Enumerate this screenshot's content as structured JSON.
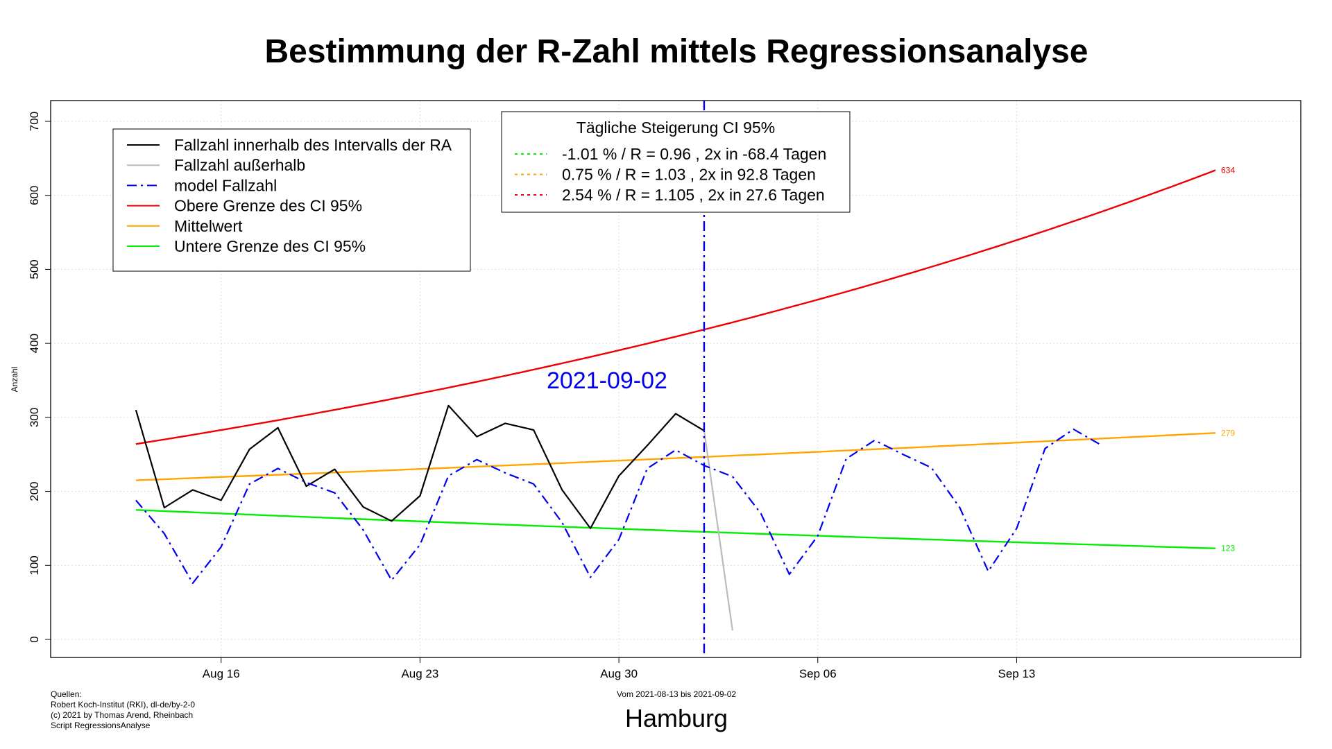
{
  "chart_data": {
    "type": "line",
    "title": "Bestimmung der R-Zahl mittels Regressionsanalyse",
    "ylabel": "Anzahl",
    "subtitle": "Hamburg",
    "range_note": "Vom 2021-08-13 bis 2021-09-02",
    "sources": [
      "Quellen:",
      "Robert Koch-Institut (RKI), dl-de/by-2-0",
      "(c) 2021 by Thomas Arend, Rheinbach",
      "Script RegressionsAnalyse"
    ],
    "ylim": [
      0,
      700
    ],
    "yticks": [
      0,
      100,
      200,
      300,
      400,
      500,
      600,
      700
    ],
    "xlim": [
      "2021-08-10",
      "2021-09-23"
    ],
    "xticks": [
      {
        "date": "2021-08-16",
        "label": "Aug 16"
      },
      {
        "date": "2021-08-23",
        "label": "Aug 23"
      },
      {
        "date": "2021-08-30",
        "label": "Aug 30"
      },
      {
        "date": "2021-09-06",
        "label": "Sep 06"
      },
      {
        "date": "2021-09-13",
        "label": "Sep 13"
      }
    ],
    "grid": true,
    "reference_line": {
      "date": "2021-09-02",
      "label": "2021-09-02",
      "color": "#0000ee"
    },
    "series": [
      {
        "name": "Fallzahl innerhalb des Intervalls der RA",
        "color": "#000000",
        "style": "solid",
        "x": [
          "2021-08-13",
          "2021-08-14",
          "2021-08-15",
          "2021-08-16",
          "2021-08-17",
          "2021-08-18",
          "2021-08-19",
          "2021-08-20",
          "2021-08-21",
          "2021-08-22",
          "2021-08-23",
          "2021-08-24",
          "2021-08-25",
          "2021-08-26",
          "2021-08-27",
          "2021-08-28",
          "2021-08-29",
          "2021-08-30",
          "2021-08-31",
          "2021-09-01",
          "2021-09-02"
        ],
        "y": [
          310,
          178,
          202,
          188,
          257,
          286,
          207,
          230,
          179,
          160,
          194,
          316,
          274,
          292,
          283,
          202,
          150,
          221,
          262,
          305,
          282
        ]
      },
      {
        "name": "Fallzahl außerhalb",
        "color": "#bbbbbb",
        "style": "solid",
        "x": [
          "2021-09-02",
          "2021-09-03"
        ],
        "y": [
          282,
          12
        ]
      },
      {
        "name": "model Fallzahl",
        "color": "#0000ee",
        "style": "dashdot",
        "x": [
          "2021-08-13",
          "2021-08-14",
          "2021-08-15",
          "2021-08-16",
          "2021-08-17",
          "2021-08-18",
          "2021-08-19",
          "2021-08-20",
          "2021-08-21",
          "2021-08-22",
          "2021-08-23",
          "2021-08-24",
          "2021-08-25",
          "2021-08-26",
          "2021-08-27",
          "2021-08-28",
          "2021-08-29",
          "2021-08-30",
          "2021-08-31",
          "2021-09-01",
          "2021-09-02",
          "2021-09-03",
          "2021-09-04",
          "2021-09-05",
          "2021-09-06",
          "2021-09-07",
          "2021-09-08",
          "2021-09-09",
          "2021-09-10",
          "2021-09-11",
          "2021-09-12",
          "2021-09-13",
          "2021-09-14",
          "2021-09-15",
          "2021-09-16"
        ],
        "y": [
          188,
          143,
          76,
          125,
          210,
          231,
          212,
          198,
          148,
          80,
          128,
          221,
          243,
          225,
          210,
          158,
          84,
          135,
          231,
          256,
          235,
          220,
          170,
          88,
          140,
          244,
          269,
          250,
          232,
          178,
          92,
          150,
          258,
          284,
          262
        ]
      },
      {
        "name": "Obere Grenze des CI 95%",
        "color": "#ee0000",
        "style": "solid",
        "kind": "exponential",
        "start": {
          "date": "2021-08-13",
          "value": 264
        },
        "end": {
          "date": "2021-09-20",
          "value": 634
        },
        "end_label": "634"
      },
      {
        "name": "Mittelwert",
        "color": "#ffa500",
        "style": "solid",
        "kind": "exponential",
        "start": {
          "date": "2021-08-13",
          "value": 215
        },
        "end": {
          "date": "2021-09-20",
          "value": 279
        },
        "end_label": "279"
      },
      {
        "name": "Untere Grenze des CI 95%",
        "color": "#00ee00",
        "style": "solid",
        "kind": "exponential",
        "start": {
          "date": "2021-08-13",
          "value": 175
        },
        "end": {
          "date": "2021-09-20",
          "value": 123
        },
        "end_label": "123"
      }
    ],
    "legend": {
      "position": "top-left",
      "items": [
        {
          "label": "Fallzahl innerhalb des Intervalls der RA",
          "color": "#000000",
          "style": "solid"
        },
        {
          "label": "Fallzahl außerhalb",
          "color": "#bbbbbb",
          "style": "solid"
        },
        {
          "label": "model Fallzahl",
          "color": "#0000ee",
          "style": "dashdot"
        },
        {
          "label": "Obere Grenze des CI 95%",
          "color": "#ee0000",
          "style": "solid"
        },
        {
          "label": "Mittelwert",
          "color": "#ffa500",
          "style": "solid"
        },
        {
          "label": "Untere Grenze des CI 95%",
          "color": "#00ee00",
          "style": "solid"
        }
      ]
    },
    "legend2": {
      "position": "top-center",
      "title": "Tägliche Steigerung CI  95%",
      "items": [
        {
          "label": "-1.01 % / R = 0.96 , 2x in -68.4 Tagen",
          "color": "#00ee00",
          "style": "dotted"
        },
        {
          "label": "0.75 % / R = 1.03 , 2x in 92.8 Tagen",
          "color": "#ffa500",
          "style": "dotted"
        },
        {
          "label": "2.54 % / R = 1.105 , 2x in 27.6 Tagen",
          "color": "#ee0000",
          "style": "dotted"
        }
      ]
    }
  }
}
